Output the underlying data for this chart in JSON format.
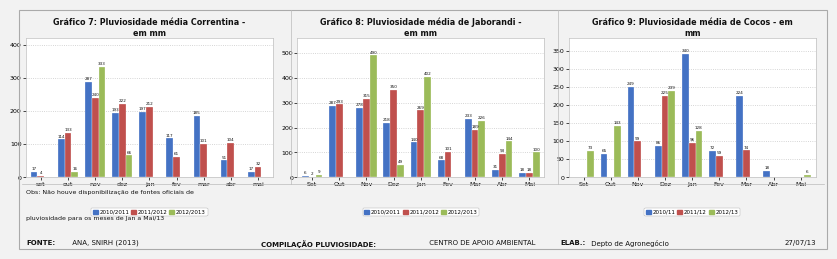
{
  "charts": [
    {
      "title": "Gráfico 7: Pluviosidade média Correntina -\nem mm",
      "categories": [
        "set",
        "out",
        "nov",
        "dez",
        "jan",
        "fev",
        "mar",
        "abr",
        "mai"
      ],
      "series_names": [
        "2010/2011",
        "2011/2012",
        "2012/2013"
      ],
      "series_data": [
        [
          17,
          114,
          287,
          193,
          197,
          117,
          185,
          51,
          17
        ],
        [
          4,
          133,
          240,
          222,
          212,
          61,
          101,
          104,
          32
        ],
        [
          0,
          16,
          333,
          66,
          0,
          0,
          0,
          0,
          0
        ]
      ],
      "ylim": [
        0,
        420
      ],
      "yticks": [
        0,
        100,
        200,
        300,
        400
      ]
    },
    {
      "title": "Gráfico 8: Pluviosidade média de Jaborandi -\nem mm",
      "categories": [
        "Set",
        "Out",
        "Nov",
        "Dez",
        "Jan",
        "Fev",
        "Mar",
        "Abr",
        "Mai"
      ],
      "series_names": [
        "2010/2011",
        "2011/2012",
        "2012/2013"
      ],
      "series_data": [
        [
          6,
          287,
          278,
          218,
          140,
          68,
          233,
          31,
          18
        ],
        [
          2,
          293,
          315,
          350,
          269,
          101,
          189,
          93,
          18
        ],
        [
          9,
          0,
          490,
          49,
          402,
          0,
          226,
          144,
          100
        ]
      ],
      "ylim": [
        0,
        560
      ],
      "yticks": [
        0,
        100,
        200,
        300,
        400,
        500
      ]
    },
    {
      "title": "Gráfico 9: Pluviosidade média de Cocos - em\nmm",
      "categories": [
        "Set",
        "Out",
        "Nov",
        "Dez",
        "Jan",
        "Fev",
        "Mar",
        "Abr",
        "Mai"
      ],
      "series_names": [
        "2010/11",
        "2011/12",
        "2012/13"
      ],
      "series_data": [
        [
          0,
          65,
          249,
          86,
          340,
          72,
          224,
          18,
          0
        ],
        [
          0,
          0,
          99,
          225,
          96,
          59,
          74,
          0,
          0
        ],
        [
          73,
          143,
          0,
          239,
          128,
          0,
          0,
          0,
          6
        ]
      ],
      "ylim": [
        0,
        385
      ],
      "yticks": [
        0,
        50,
        100,
        150,
        200,
        250,
        300,
        350
      ]
    }
  ],
  "colors": [
    "#4472C4",
    "#C0504D",
    "#9BBB59"
  ],
  "bar_width": 0.25,
  "bg_color": "#F2F2F2",
  "plot_bg": "#FFFFFF",
  "border_color": "#BFBFBF",
  "grid_color": "#C8C8C8",
  "footnote_line1": "Obs: Não houve disponibilização de fontes oficiais de",
  "footnote_line2": "pluviosidade para os meses de Jan a Mai/13",
  "fonte_bold": "FONTE:",
  "fonte_rest": " ANA, SNIRH (2013)",
  "comp_bold": "COMPILAÇÃO PLUVIOSIDADE:",
  "comp_rest": " CENTRO DE APOIO AMBIENTAL",
  "elab_bold": "ELAB.:",
  "elab_rest": " Depto de Agronegócio",
  "date": "27/07/13"
}
